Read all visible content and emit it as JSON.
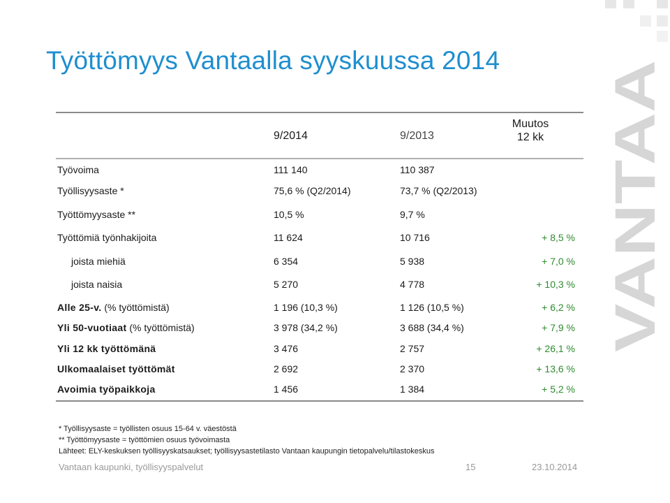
{
  "title": "Työttömyys Vantaalla syyskuussa 2014",
  "columns": {
    "c1": "9/2014",
    "c2": "9/2013",
    "c3_line1": "Muutos",
    "c3_line2": "12 kk"
  },
  "rows": [
    {
      "label": "Työvoima",
      "sub": "",
      "v1": "111 140",
      "v2": "110 387",
      "change": ""
    },
    {
      "label": "Työllisyysaste *",
      "sub": "",
      "v1": "75,6 % (Q2/2014)",
      "v2": "73,7 % (Q2/2013)",
      "change": ""
    },
    {
      "label": "Työttömyysaste **",
      "sub": "",
      "v1": "10,5 %",
      "v2": "9,7 %",
      "change": ""
    },
    {
      "label": "Työttömiä työnhakijoita",
      "sub": "",
      "v1": "11 624",
      "v2": "10 716",
      "change": "+ 8,5 %"
    },
    {
      "label": "joista miehiä",
      "sub": "",
      "v1": "6 354",
      "v2": "5 938",
      "change": "+ 7,0 %"
    },
    {
      "label": "joista naisia",
      "sub": "",
      "v1": "5 270",
      "v2": "4 778",
      "change": "+ 10,3 %"
    },
    {
      "label": "Alle 25-v.",
      "sub": "(% työttömistä)",
      "v1": "1 196 (10,3 %)",
      "v2": "1 126 (10,5 %)",
      "change": "+ 6,2 %"
    },
    {
      "label": "Yli 50-vuotiaat",
      "sub": "(% työttömistä)",
      "v1": "3 978 (34,2 %)",
      "v2": "3 688 (34,4 %)",
      "change": "+ 7,9 %"
    },
    {
      "label": "Yli 12 kk työttömänä",
      "sub": "",
      "v1": "3 476",
      "v2": "2 757",
      "change": "+ 26,1 %"
    },
    {
      "label": "Ulkomaalaiset työttömät",
      "sub": "",
      "v1": "2 692",
      "v2": "2 370",
      "change": "+ 13,6 %"
    },
    {
      "label": "Avoimia työpaikkoja",
      "sub": "",
      "v1": "1 456",
      "v2": "1 384",
      "change": "+ 5,2 %"
    }
  ],
  "notes": {
    "n1": "*  Työllisyysaste = työllisten osuus 15-64 v. väestöstä",
    "n2": "**  Työttömyysaste = työttömien osuus työvoimasta",
    "n3": "Lähteet: ELY-keskuksen työllisyyskatsaukset; työllisyysastetilasto Vantaan kaupungin tietopalvelu/tilastokeskus"
  },
  "footer": {
    "org": "Vantaan kaupunki, työllisyyspalvelut",
    "page": "15",
    "date": "23.10.2014"
  },
  "logo_text": "VANTAA",
  "colors": {
    "title": "#1f8ecf",
    "change": "#2f8a2f",
    "logo": "#d6d6d6"
  }
}
